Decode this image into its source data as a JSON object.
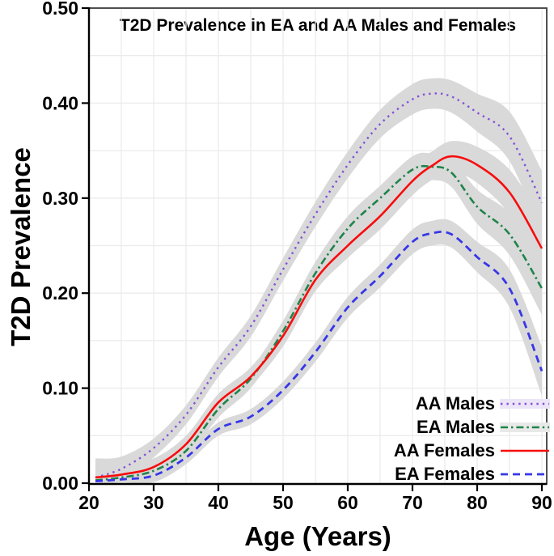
{
  "figure": {
    "title": "T2D Prevalence in EA and AA Males and Females",
    "x_label": "Age (Years)",
    "y_label": "T2D Prevalence"
  },
  "chart_data": {
    "type": "line",
    "title": "T2D Prevalence in EA and AA Males and Females",
    "xlabel": "Age (Years)",
    "ylabel": "T2D Prevalence",
    "xlim": [
      20,
      90
    ],
    "ylim": [
      0.0,
      0.5
    ],
    "xticks": [
      {
        "v": 20,
        "label": "20"
      },
      {
        "v": 30,
        "label": "30"
      },
      {
        "v": 40,
        "label": "40"
      },
      {
        "v": 50,
        "label": "50"
      },
      {
        "v": 60,
        "label": "60"
      },
      {
        "v": 70,
        "label": "70"
      },
      {
        "v": 80,
        "label": "80"
      },
      {
        "v": 90,
        "label": "90"
      }
    ],
    "yticks": [
      {
        "v": 0.0,
        "label": "0.00"
      },
      {
        "v": 0.1,
        "label": "0.10"
      },
      {
        "v": 0.2,
        "label": "0.20"
      },
      {
        "v": 0.3,
        "label": "0.30"
      },
      {
        "v": 0.4,
        "label": "0.40"
      },
      {
        "v": 0.5,
        "label": "0.50"
      }
    ],
    "grid": {
      "v": [
        25,
        30,
        35,
        40,
        45,
        50,
        55,
        60,
        65,
        70,
        75,
        80,
        85,
        90
      ],
      "h": [
        0.05,
        0.1,
        0.15,
        0.2,
        0.25,
        0.3,
        0.35,
        0.4,
        0.45
      ],
      "color": "#ebebeb"
    },
    "band_color": "#d9d9d9",
    "x": [
      21,
      25,
      30,
      35,
      40,
      45,
      50,
      55,
      60,
      65,
      70,
      73,
      76,
      80,
      85,
      90
    ],
    "series": [
      {
        "name": "AA Males",
        "color": "#8450d8",
        "line_style": "dotted",
        "dash": "2.4 5",
        "width": 2.4,
        "values": [
          0.006,
          0.015,
          0.037,
          0.072,
          0.122,
          0.165,
          0.225,
          0.283,
          0.335,
          0.378,
          0.404,
          0.41,
          0.407,
          0.39,
          0.365,
          0.295
        ],
        "band": [
          0.02,
          0.013,
          0.01,
          0.01,
          0.01,
          0.011,
          0.012,
          0.013,
          0.014,
          0.015,
          0.016,
          0.016,
          0.017,
          0.02,
          0.026,
          0.034
        ]
      },
      {
        "name": "EA Males",
        "color": "#1e8449",
        "line_style": "dash-dot",
        "dash": "9 4 2.4 4",
        "width": 2.6,
        "values": [
          0.003,
          0.006,
          0.013,
          0.034,
          0.078,
          0.11,
          0.16,
          0.221,
          0.268,
          0.3,
          0.33,
          0.333,
          0.327,
          0.291,
          0.262,
          0.205
        ],
        "band": [
          0.015,
          0.01,
          0.008,
          0.008,
          0.009,
          0.01,
          0.011,
          0.012,
          0.013,
          0.013,
          0.014,
          0.014,
          0.015,
          0.018,
          0.022,
          0.028
        ]
      },
      {
        "name": "AA Females",
        "color": "#f80c0c",
        "line_style": "solid",
        "dash": "",
        "width": 2.6,
        "values": [
          0.006,
          0.009,
          0.017,
          0.041,
          0.085,
          0.112,
          0.155,
          0.214,
          0.25,
          0.281,
          0.318,
          0.334,
          0.344,
          0.335,
          0.306,
          0.247
        ],
        "band": [
          0.016,
          0.011,
          0.009,
          0.009,
          0.009,
          0.01,
          0.011,
          0.012,
          0.013,
          0.014,
          0.015,
          0.015,
          0.016,
          0.019,
          0.024,
          0.032
        ]
      },
      {
        "name": "EA Females",
        "color": "#3737e8",
        "line_style": "dashed",
        "dash": "9 6",
        "width": 2.8,
        "values": [
          0.002,
          0.004,
          0.008,
          0.027,
          0.057,
          0.07,
          0.098,
          0.138,
          0.185,
          0.218,
          0.254,
          0.263,
          0.262,
          0.238,
          0.205,
          0.118
        ],
        "band": [
          0.013,
          0.009,
          0.007,
          0.007,
          0.007,
          0.008,
          0.009,
          0.01,
          0.011,
          0.012,
          0.013,
          0.013,
          0.014,
          0.016,
          0.02,
          0.026
        ]
      }
    ],
    "legend": {
      "position": "bottom-right",
      "key_backgrounds": [
        "#ece5f7",
        "#e9e9e9",
        "#ffffff",
        "#ffffff"
      ]
    }
  },
  "style": {
    "axis_color": "#000000",
    "spine_color": "#3d3d3d",
    "background": "#ffffff"
  }
}
